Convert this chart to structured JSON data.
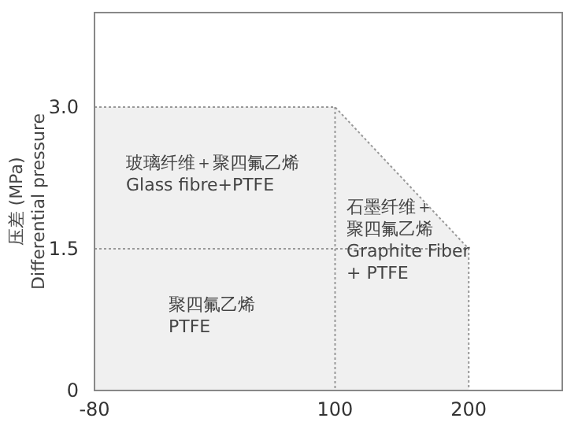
{
  "chart_data": {
    "type": "area",
    "ylabel": "压差 (MPa)\nDifferential pressure",
    "x": [
      -80,
      100,
      200
    ],
    "values": [
      3.0,
      3.0,
      1.5
    ],
    "color": "#f0f0f0",
    "xlim": [
      -80,
      270
    ],
    "ylim": [
      0,
      4
    ],
    "xticks": [
      -80,
      100,
      200
    ],
    "yticks": [
      0,
      1.5,
      {
        "value": 3,
        "label": "3.0"
      }
    ],
    "grid": false,
    "line_style": "dotted",
    "ref_lines": [
      {
        "axis": "y",
        "value": 1.5,
        "color": "#999999",
        "line_style": "dotted"
      },
      {
        "axis": "x",
        "value": 100,
        "color": "#999999",
        "line_style": "dotted"
      }
    ],
    "annotations": [
      "玻璃纤维＋聚四氟乙烯\nGlass fibre+PTFE",
      "聚四氟乙烯\nPTFE",
      "石墨纤维＋聚四氟乙烯\nGraphite Fiber\n+ PTFE"
    ]
  }
}
